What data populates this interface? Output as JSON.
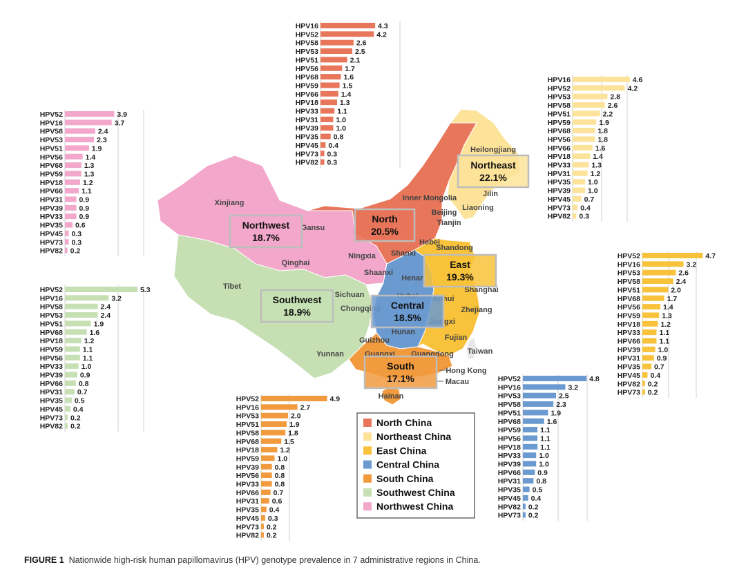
{
  "caption": {
    "label": "FIGURE 1",
    "text": "Nationwide high-risk human papillomavirus (HPV) genotype prevalence in 7 administrative regions in China."
  },
  "legend": [
    {
      "name": "North China",
      "color": "#e8765a"
    },
    {
      "name": "Northeast China",
      "color": "#fde39a"
    },
    {
      "name": "East China",
      "color": "#f8c23a"
    },
    {
      "name": "Central China",
      "color": "#6b9ad1"
    },
    {
      "name": "South China",
      "color": "#f19a3e"
    },
    {
      "name": "Southwest China",
      "color": "#c6e0b4"
    },
    {
      "name": "Northwest China",
      "color": "#f2a7cb"
    }
  ],
  "regions": [
    {
      "name": "Northeast",
      "pct": "22.1%",
      "color": "#fde39a"
    },
    {
      "name": "North",
      "pct": "20.5%",
      "color": "#e8765a"
    },
    {
      "name": "Northwest",
      "pct": "18.7%",
      "color": "#f2a7cb"
    },
    {
      "name": "East",
      "pct": "19.3%",
      "color": "#f8c23a"
    },
    {
      "name": "Southwest",
      "pct": "18.9%",
      "color": "#c6e0b4"
    },
    {
      "name": "Central",
      "pct": "18.5%",
      "color": "#6b9ad1"
    },
    {
      "name": "South",
      "pct": "17.1%",
      "color": "#f19a3e"
    }
  ],
  "provinces": [
    "Heilongjiang",
    "Jilin",
    "Liaoning",
    "Inner Mongolia",
    "Beijing",
    "Tianjin",
    "Hebei",
    "Shandong",
    "Xinjiang",
    "Gansu",
    "Ningxia",
    "Qinghai",
    "Shanxi",
    "Shaanxi",
    "Henan",
    "Tibet",
    "Sichuan",
    "Chongqing",
    "Hubai",
    "Anhui",
    "Shanghai",
    "Zhejiang",
    "Jiangxi",
    "Hunan",
    "Fujian",
    "Guizhou",
    "Yunnan",
    "Guangxi",
    "Guangdong",
    "Taiwan",
    "Hong Kong",
    "Macau",
    "Hainan"
  ],
  "chart_data": [
    {
      "type": "bar",
      "region": "North",
      "color": "#e8765a",
      "categories": [
        "HPV16",
        "HPV52",
        "HPV58",
        "HPV53",
        "HPV51",
        "HPV56",
        "HPV68",
        "HPV59",
        "HPV66",
        "HPV18",
        "HPV33",
        "HPV31",
        "HPV39",
        "HPV35",
        "HPV45",
        "HPV73",
        "HPV82"
      ],
      "values": [
        4.3,
        4.2,
        2.6,
        2.5,
        2.1,
        1.7,
        1.6,
        1.5,
        1.4,
        1.3,
        1.1,
        1.0,
        1.0,
        0.8,
        0.4,
        0.3,
        0.3
      ]
    },
    {
      "type": "bar",
      "region": "Northeast",
      "color": "#fde39a",
      "categories": [
        "HPV16",
        "HPV52",
        "HPV53",
        "HPV58",
        "HPV51",
        "HPV59",
        "HPV68",
        "HPV56",
        "HPV66",
        "HPV18",
        "HPV33",
        "HPV31",
        "HPV35",
        "HPV39",
        "HPV45",
        "HPV73",
        "HPV82"
      ],
      "values": [
        4.6,
        4.2,
        2.8,
        2.6,
        2.2,
        1.9,
        1.8,
        1.8,
        1.6,
        1.4,
        1.3,
        1.2,
        1.0,
        1.0,
        0.7,
        0.4,
        0.3
      ]
    },
    {
      "type": "bar",
      "region": "Northwest",
      "color": "#f2a7cb",
      "categories": [
        "HPV52",
        "HPV16",
        "HPV58",
        "HPV53",
        "HPV51",
        "HPV56",
        "HPV68",
        "HPV59",
        "HPV18",
        "HPV66",
        "HPV31",
        "HPV39",
        "HPV33",
        "HPV35",
        "HPV45",
        "HPV73",
        "HPV82"
      ],
      "values": [
        3.9,
        3.7,
        2.4,
        2.3,
        1.9,
        1.4,
        1.3,
        1.3,
        1.2,
        1.1,
        0.9,
        0.9,
        0.9,
        0.6,
        0.3,
        0.3,
        0.2
      ]
    },
    {
      "type": "bar",
      "region": "Southwest",
      "color": "#c6e0b4",
      "categories": [
        "HPV52",
        "HPV16",
        "HPV58",
        "HPV53",
        "HPV51",
        "HPV68",
        "HPV18",
        "HPV59",
        "HPV56",
        "HPV33",
        "HPV39",
        "HPV66",
        "HPV31",
        "HPV35",
        "HPV45",
        "HPV73",
        "HPV82"
      ],
      "values": [
        5.3,
        3.2,
        2.4,
        2.4,
        1.9,
        1.6,
        1.2,
        1.1,
        1.1,
        1.0,
        0.9,
        0.8,
        0.7,
        0.5,
        0.4,
        0.2,
        0.2
      ]
    },
    {
      "type": "bar",
      "region": "South",
      "color": "#f19a3e",
      "categories": [
        "HPV52",
        "HPV16",
        "HPV53",
        "HPV51",
        "HPV58",
        "HPV68",
        "HPV18",
        "HPV59",
        "HPV39",
        "HPV56",
        "HPV33",
        "HPV66",
        "HPV31",
        "HPV35",
        "HPV45",
        "HPV73",
        "HPV82"
      ],
      "values": [
        4.9,
        2.7,
        2.0,
        1.9,
        1.8,
        1.5,
        1.2,
        1.0,
        0.8,
        0.8,
        0.8,
        0.7,
        0.6,
        0.4,
        0.3,
        0.2,
        0.2
      ]
    },
    {
      "type": "bar",
      "region": "Central",
      "color": "#6b9ad1",
      "categories": [
        "HPV52",
        "HPV16",
        "HPV53",
        "HPV58",
        "HPV51",
        "HPV68",
        "HPV59",
        "HPV56",
        "HPV18",
        "HPV33",
        "HPV39",
        "HPV66",
        "HPV31",
        "HPV35",
        "HPV45",
        "HPV82",
        "HPV73"
      ],
      "values": [
        4.8,
        3.2,
        2.5,
        2.3,
        1.9,
        1.6,
        1.1,
        1.1,
        1.1,
        1.0,
        1.0,
        0.9,
        0.8,
        0.5,
        0.4,
        0.2,
        0.2
      ]
    },
    {
      "type": "bar",
      "region": "East",
      "color": "#f8c23a",
      "categories": [
        "HPV52",
        "HPV16",
        "HPV53",
        "HPV58",
        "HPV51",
        "HPV68",
        "HPV56",
        "HPV59",
        "HPV18",
        "HPV33",
        "HPV66",
        "HPV39",
        "HPV31",
        "HPV35",
        "HPV45",
        "HPV82",
        "HPV73"
      ],
      "values": [
        4.7,
        3.2,
        2.6,
        2.4,
        2.0,
        1.7,
        1.4,
        1.3,
        1.2,
        1.1,
        1.1,
        1.0,
        0.9,
        0.7,
        0.4,
        0.2,
        0.2
      ]
    }
  ]
}
